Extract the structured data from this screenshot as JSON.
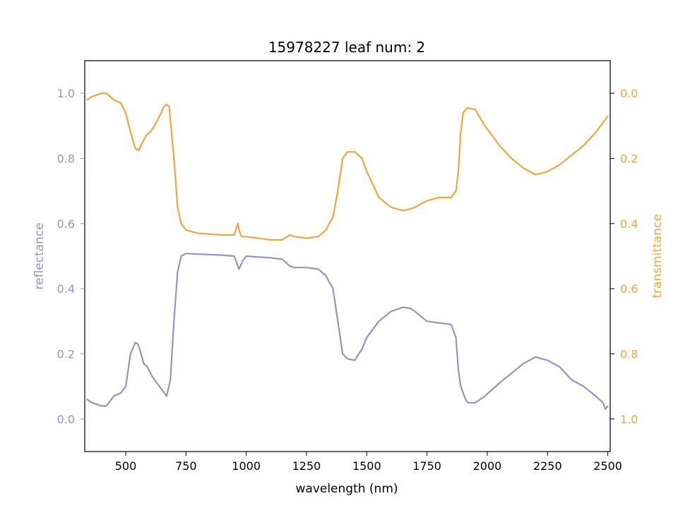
{
  "chart_data": {
    "type": "line",
    "title": "15978227 leaf num: 2",
    "xlabel": "wavelength (nm)",
    "ylabel_left": "reflectance",
    "ylabel_right": "transmittance",
    "xlim": [
      330,
      2510
    ],
    "ylim_left": [
      -0.1,
      1.1
    ],
    "ylim_right": [
      1.1,
      -0.1
    ],
    "right_axis_inverted": true,
    "grid": false,
    "legend": "none",
    "x_ticks": [
      500,
      750,
      1000,
      1250,
      1500,
      1750,
      2000,
      2250,
      2500
    ],
    "y_ticks_left": [
      0.0,
      0.2,
      0.4,
      0.6,
      0.8,
      1.0
    ],
    "y_ticks_right": [
      0.0,
      0.2,
      0.4,
      0.6,
      0.8,
      1.0
    ],
    "colors": {
      "reflectance": "#9990c4",
      "transmittance": "#f0a53c"
    },
    "series": [
      {
        "axis": "left",
        "x": [
          340,
          360,
          380,
          400,
          420,
          450,
          480,
          500,
          520,
          540,
          550,
          560,
          575,
          590,
          610,
          630,
          650,
          670,
          685,
          700,
          715,
          730,
          750,
          800,
          900,
          950,
          970,
          985,
          1000,
          1050,
          1100,
          1150,
          1180,
          1200,
          1250,
          1300,
          1330,
          1360,
          1380,
          1400,
          1420,
          1450,
          1480,
          1500,
          1550,
          1600,
          1650,
          1680,
          1700,
          1750,
          1800,
          1850,
          1870,
          1880,
          1890,
          1900,
          1910,
          1920,
          1950,
          1990,
          2050,
          2100,
          2150,
          2200,
          2250,
          2300,
          2350,
          2400,
          2450,
          2480,
          2490,
          2500
        ],
        "y": [
          0.06,
          0.05,
          0.045,
          0.04,
          0.04,
          0.07,
          0.08,
          0.1,
          0.2,
          0.235,
          0.23,
          0.21,
          0.17,
          0.16,
          0.13,
          0.11,
          0.09,
          0.07,
          0.12,
          0.3,
          0.45,
          0.5,
          0.508,
          0.506,
          0.503,
          0.5,
          0.46,
          0.485,
          0.5,
          0.497,
          0.495,
          0.49,
          0.47,
          0.465,
          0.465,
          0.46,
          0.44,
          0.4,
          0.3,
          0.2,
          0.185,
          0.18,
          0.215,
          0.25,
          0.3,
          0.33,
          0.343,
          0.34,
          0.33,
          0.3,
          0.295,
          0.29,
          0.25,
          0.15,
          0.1,
          0.08,
          0.06,
          0.05,
          0.05,
          0.07,
          0.11,
          0.14,
          0.17,
          0.19,
          0.18,
          0.16,
          0.12,
          0.1,
          0.07,
          0.05,
          0.03,
          0.04
        ]
      },
      {
        "axis": "right",
        "x": [
          340,
          360,
          400,
          420,
          450,
          480,
          500,
          520,
          540,
          555,
          570,
          585,
          600,
          620,
          640,
          660,
          670,
          680,
          700,
          715,
          730,
          750,
          800,
          900,
          950,
          965,
          970,
          980,
          1000,
          1050,
          1100,
          1150,
          1180,
          1200,
          1250,
          1300,
          1330,
          1360,
          1380,
          1400,
          1420,
          1450,
          1480,
          1500,
          1550,
          1600,
          1650,
          1680,
          1700,
          1750,
          1800,
          1850,
          1870,
          1880,
          1890,
          1900,
          1910,
          1920,
          1950,
          1990,
          2050,
          2100,
          2150,
          2200,
          2250,
          2300,
          2350,
          2400,
          2450,
          2480,
          2500
        ],
        "y": [
          0.02,
          0.01,
          0.0,
          0.0,
          0.02,
          0.03,
          0.06,
          0.12,
          0.17,
          0.175,
          0.15,
          0.13,
          0.12,
          0.1,
          0.07,
          0.04,
          0.035,
          0.04,
          0.2,
          0.35,
          0.4,
          0.42,
          0.43,
          0.435,
          0.435,
          0.4,
          0.42,
          0.44,
          0.44,
          0.445,
          0.45,
          0.45,
          0.435,
          0.44,
          0.445,
          0.44,
          0.42,
          0.38,
          0.3,
          0.2,
          0.18,
          0.18,
          0.2,
          0.24,
          0.32,
          0.35,
          0.36,
          0.355,
          0.35,
          0.33,
          0.32,
          0.32,
          0.3,
          0.24,
          0.12,
          0.06,
          0.05,
          0.045,
          0.05,
          0.1,
          0.16,
          0.2,
          0.23,
          0.25,
          0.24,
          0.22,
          0.19,
          0.16,
          0.12,
          0.09,
          0.07
        ]
      }
    ]
  }
}
